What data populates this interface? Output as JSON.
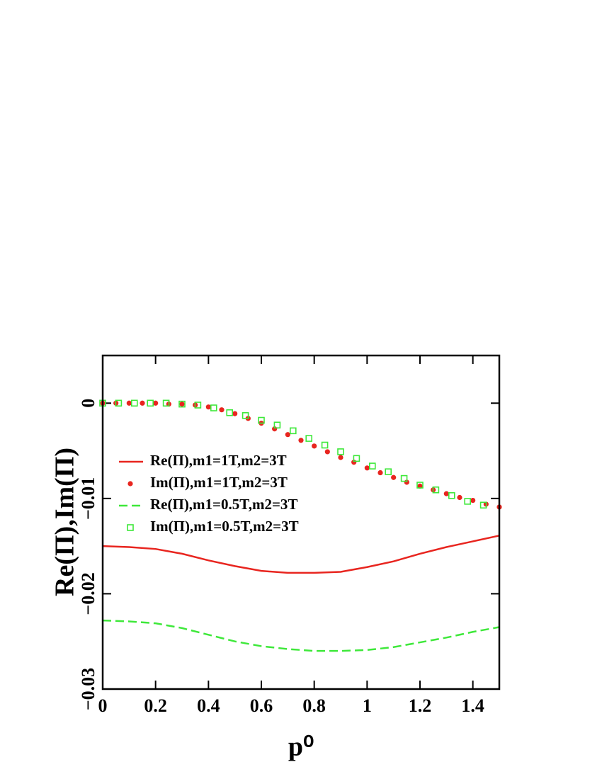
{
  "chart_data": {
    "type": "line",
    "x_label": "p⁰",
    "y_label": "Re(Π),Im(Π)",
    "xlim": [
      0,
      1.5
    ],
    "ylim": [
      -0.03,
      0.005
    ],
    "xticks": [
      0,
      0.2,
      0.4,
      0.6,
      0.8,
      1,
      1.2,
      1.4
    ],
    "yticks": [
      {
        "value": 0,
        "label": "0"
      },
      {
        "value": -0.01,
        "label": "−0.01"
      },
      {
        "value": -0.02,
        "label": "−0.02"
      },
      {
        "value": -0.03,
        "label": "−0.03"
      }
    ],
    "legend": "left",
    "series": [
      {
        "name": "Re(Π),m1=1T,m2=3T",
        "color": "#e8251f",
        "style": "solid",
        "x": [
          0,
          0.1,
          0.2,
          0.3,
          0.4,
          0.5,
          0.6,
          0.7,
          0.8,
          0.9,
          1.0,
          1.1,
          1.2,
          1.3,
          1.4,
          1.5
        ],
        "values": [
          -0.015,
          -0.0151,
          -0.0153,
          -0.0158,
          -0.0165,
          -0.0171,
          -0.0176,
          -0.0178,
          -0.0178,
          -0.0177,
          -0.0172,
          -0.0166,
          -0.0158,
          -0.0151,
          -0.0145,
          -0.0139
        ]
      },
      {
        "name": "Im(Π),m1=1T,m2=3T",
        "color": "#e8251f",
        "marker": "circle",
        "x": [
          0,
          0.05,
          0.1,
          0.15,
          0.2,
          0.25,
          0.3,
          0.35,
          0.4,
          0.45,
          0.5,
          0.55,
          0.6,
          0.65,
          0.7,
          0.75,
          0.8,
          0.85,
          0.9,
          0.95,
          1.0,
          1.05,
          1.1,
          1.15,
          1.2,
          1.25,
          1.3,
          1.35,
          1.4,
          1.45,
          1.5
        ],
        "values": [
          0,
          0,
          0,
          0,
          0,
          -0.0001,
          -0.0001,
          -0.0002,
          -0.0004,
          -0.0007,
          -0.0011,
          -0.0016,
          -0.0021,
          -0.0027,
          -0.0033,
          -0.0039,
          -0.0045,
          -0.0051,
          -0.0057,
          -0.0062,
          -0.0068,
          -0.0073,
          -0.0078,
          -0.0083,
          -0.0087,
          -0.0091,
          -0.0095,
          -0.0099,
          -0.0102,
          -0.0106,
          -0.0109
        ]
      },
      {
        "name": "Re(Π),m1=0.5T,m2=3T",
        "color": "#3ee83a",
        "style": "dashed",
        "x": [
          0,
          0.1,
          0.2,
          0.3,
          0.4,
          0.5,
          0.6,
          0.7,
          0.8,
          0.9,
          1.0,
          1.1,
          1.2,
          1.3,
          1.4,
          1.5
        ],
        "values": [
          -0.0228,
          -0.0229,
          -0.0231,
          -0.0236,
          -0.0243,
          -0.025,
          -0.0255,
          -0.0258,
          -0.026,
          -0.026,
          -0.0259,
          -0.0256,
          -0.0251,
          -0.0246,
          -0.024,
          -0.0235
        ]
      },
      {
        "name": "Im(Π),m1=0.5T,m2=3T",
        "color": "#3ee83a",
        "marker": "square",
        "x": [
          0,
          0.06,
          0.12,
          0.18,
          0.24,
          0.3,
          0.36,
          0.42,
          0.48,
          0.54,
          0.6,
          0.66,
          0.72,
          0.78,
          0.84,
          0.9,
          0.96,
          1.02,
          1.08,
          1.14,
          1.2,
          1.26,
          1.32,
          1.38,
          1.44
        ],
        "values": [
          0,
          0,
          0,
          0,
          0,
          -0.0001,
          -0.0002,
          -0.0005,
          -0.001,
          -0.0013,
          -0.0018,
          -0.0023,
          -0.0029,
          -0.0037,
          -0.0044,
          -0.0051,
          -0.0058,
          -0.0066,
          -0.0072,
          -0.0079,
          -0.0086,
          -0.0091,
          -0.0097,
          -0.0103,
          -0.0107
        ]
      }
    ]
  }
}
